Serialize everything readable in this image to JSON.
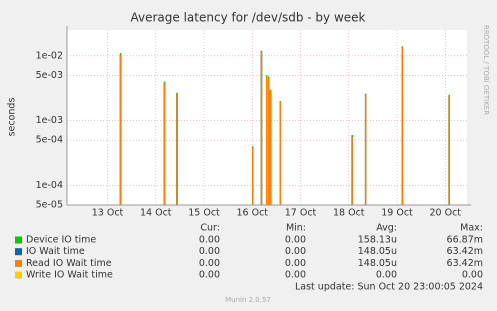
{
  "chart_data": {
    "type": "spike",
    "title": "Average latency for /dev/sdb - by week",
    "y_label": "seconds",
    "side_note": "RRDTOOL / TOBI OETIKER",
    "log_y": true,
    "grid": true,
    "ylim": [
      5e-05,
      0.025
    ],
    "yticks": [
      {
        "value": 5e-05,
        "label": "5e-05"
      },
      {
        "value": 0.0001,
        "label": "1e-04"
      },
      {
        "value": 0.0005,
        "label": "5e-04"
      },
      {
        "value": 0.001,
        "label": "1e-03"
      },
      {
        "value": 0.005,
        "label": "5e-03"
      },
      {
        "value": 0.01,
        "label": "1e-02"
      }
    ],
    "xlim": [
      12.16,
      20.45
    ],
    "xticks": [
      {
        "value": 13,
        "label": "13 Oct"
      },
      {
        "value": 14,
        "label": "14 Oct"
      },
      {
        "value": 15,
        "label": "15 Oct"
      },
      {
        "value": 16,
        "label": "16 Oct"
      },
      {
        "value": 17,
        "label": "17 Oct"
      },
      {
        "value": 18,
        "label": "18 Oct"
      },
      {
        "value": 19,
        "label": "19 Oct"
      },
      {
        "value": 20,
        "label": "20 Oct"
      }
    ],
    "x": [
      13.27,
      14.18,
      14.44,
      16.01,
      16.19,
      16.3,
      16.34,
      16.38,
      16.58,
      18.07,
      18.35,
      19.11,
      20.08
    ],
    "stat_headers": [
      "Cur:",
      "Min:",
      "Avg:",
      "Max:"
    ],
    "series": [
      {
        "name": "Device IO time",
        "color": "#00cc00",
        "values": [
          0.011,
          0.004,
          0.0027,
          0.0004,
          0.012,
          0.005,
          0.0048,
          0.003,
          0.002,
          0.0006,
          0.0026,
          0.014,
          0.0025
        ],
        "stats": [
          "0.00",
          "0.00",
          "158.13u",
          "66.87m"
        ]
      },
      {
        "name": "IO Wait time",
        "color": "#0066b3",
        "values": [
          0.0105,
          0.0038,
          0.0026,
          0.00038,
          0.0115,
          0.0048,
          0.0045,
          0.0029,
          0.0019,
          0.00055,
          0.0025,
          0.0135,
          0.0024
        ],
        "stats": [
          "0.00",
          "0.00",
          "148.05u",
          "63.42m"
        ]
      },
      {
        "name": "Read IO Wait time",
        "color": "#ff8000",
        "values": [
          0.0105,
          0.0038,
          0.0026,
          0.00038,
          0.0115,
          0.0048,
          0.0045,
          0.0029,
          0.0019,
          0.00055,
          0.0025,
          0.0135,
          0.0024
        ],
        "stats": [
          "0.00",
          "0.00",
          "148.05u",
          "63.42m"
        ]
      },
      {
        "name": "Write IO Wait time",
        "color": "#ffcc00",
        "values": [
          null,
          null,
          null,
          null,
          null,
          null,
          null,
          null,
          null,
          null,
          null,
          null,
          null
        ],
        "stats": [
          "0.00",
          "0.00",
          "0.00",
          "0.00"
        ]
      }
    ],
    "last_update": "Last update: Sun Oct 20 23:00:05 2024",
    "footer": "Munin 2.0.57"
  }
}
